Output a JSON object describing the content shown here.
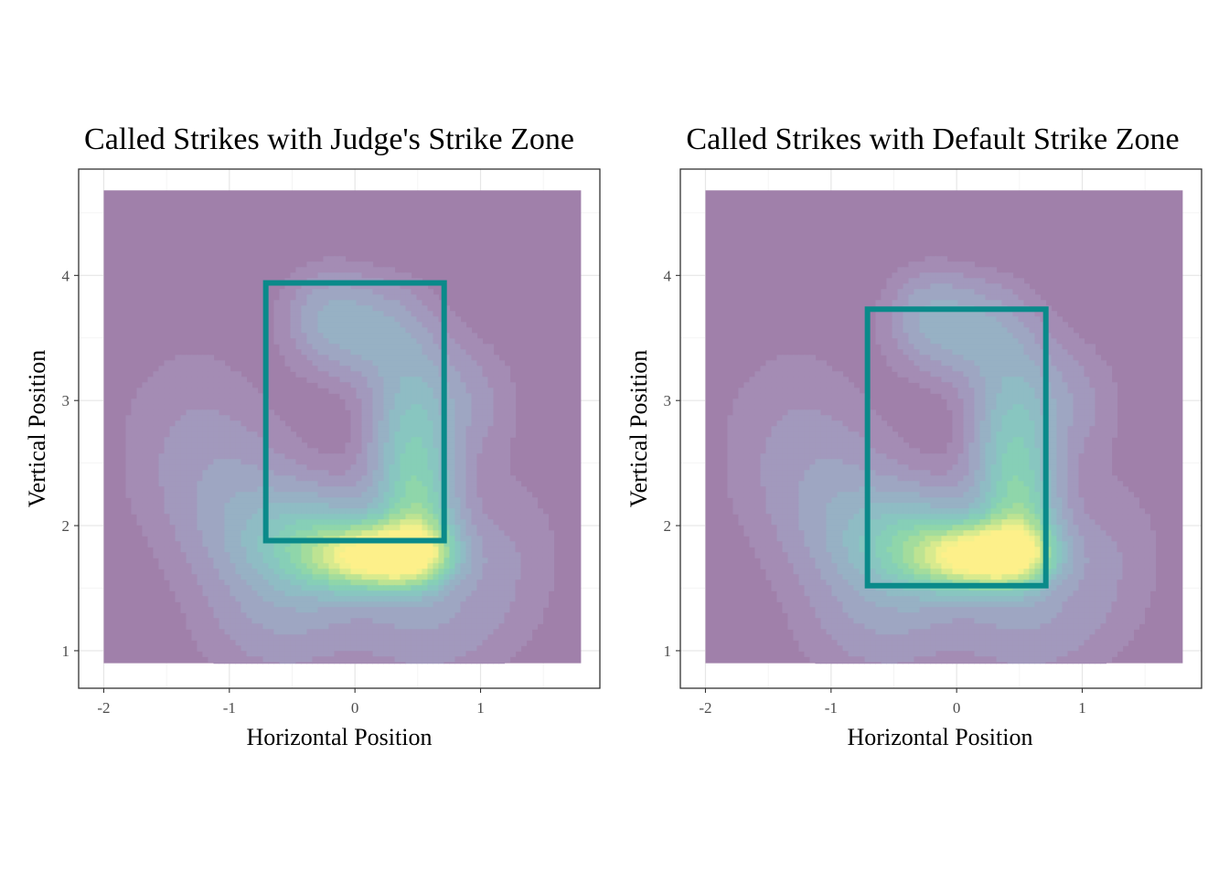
{
  "chart_data": [
    {
      "type": "heatmap",
      "subtype": "2d-density-contour-with-strike-zone",
      "title": "Called Strikes with Judge's Strike Zone",
      "xlabel": "Horizontal Position",
      "ylabel": "Vertical Position",
      "xlim": [
        -2.2,
        1.95
      ],
      "ylim": [
        0.7,
        4.85
      ],
      "x_ticks": [
        "-2",
        "-1",
        "0",
        "1"
      ],
      "y_ticks": [
        "1",
        "2",
        "3",
        "4"
      ],
      "density_extent": {
        "x": [
          -2.0,
          1.8
        ],
        "y": [
          0.9,
          4.68
        ]
      },
      "density_peak": {
        "x": 0.25,
        "y": 1.75
      },
      "strike_zone": {
        "x_min": -0.71,
        "x_max": 0.71,
        "y_min": 1.88,
        "y_max": 3.94
      },
      "grid": true,
      "legend": "none"
    },
    {
      "type": "heatmap",
      "subtype": "2d-density-contour-with-strike-zone",
      "title": "Called Strikes with Default Strike Zone",
      "xlabel": "Horizontal Position",
      "ylabel": "Vertical Position",
      "xlim": [
        -2.2,
        1.95
      ],
      "ylim": [
        0.7,
        4.85
      ],
      "x_ticks": [
        "-2",
        "-1",
        "0",
        "1"
      ],
      "y_ticks": [
        "1",
        "2",
        "3",
        "4"
      ],
      "density_extent": {
        "x": [
          -2.0,
          1.8
        ],
        "y": [
          0.9,
          4.68
        ]
      },
      "density_peak": {
        "x": 0.25,
        "y": 1.75
      },
      "strike_zone": {
        "x_min": -0.71,
        "x_max": 0.71,
        "y_min": 1.52,
        "y_max": 3.73
      },
      "grid": true,
      "legend": "none"
    }
  ],
  "colors": {
    "background_fill": "#a080aa",
    "strike_zone_stroke": "#0a8a8a",
    "density_levels": [
      "#a48cb4",
      "#a299bd",
      "#9ea6c2",
      "#97b1c4",
      "#8fbcc4",
      "#88c6c0",
      "#86cfb7",
      "#8fd6aa",
      "#a3dc9c",
      "#bde392",
      "#d8ea8e",
      "#f2f08c",
      "#fdf08a"
    ]
  }
}
